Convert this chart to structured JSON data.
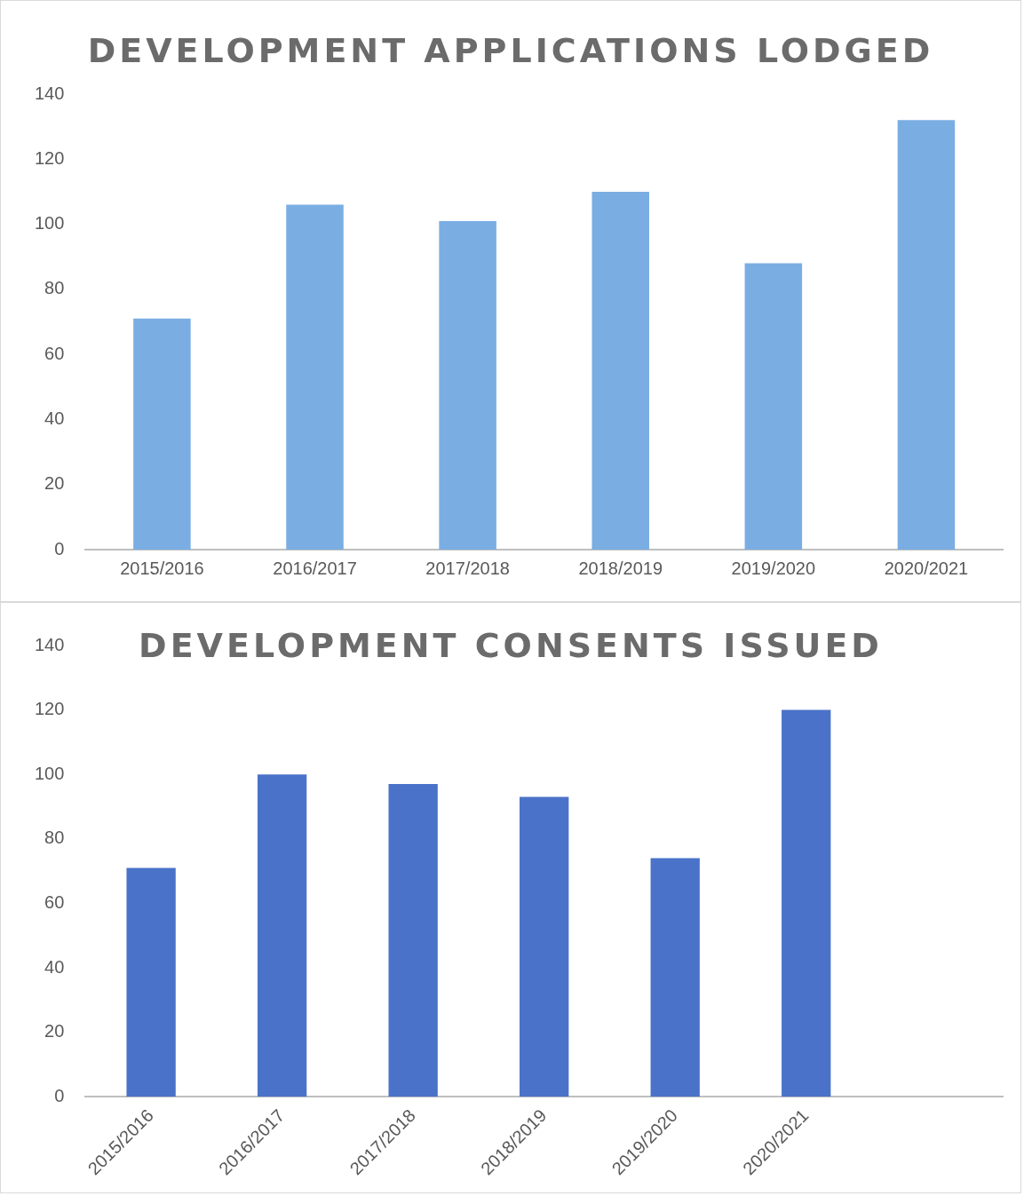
{
  "chart_data": [
    {
      "type": "bar",
      "title": "DEVELOPMENT APPLICATIONS LODGED",
      "categories": [
        "2015/2016",
        "2016/2017",
        "2017/2018",
        "2018/2019",
        "2019/2020",
        "2020/2021"
      ],
      "values": [
        71,
        106,
        101,
        110,
        88,
        132
      ],
      "color": "#7aaee3",
      "ylim": [
        0,
        140
      ],
      "yticks": [
        0,
        20,
        40,
        60,
        80,
        100,
        120,
        140
      ],
      "grid": false
    },
    {
      "type": "bar",
      "title": "DEVELOPMENT CONSENTS ISSUED",
      "categories": [
        "2015/2016",
        "2016/2017",
        "2017/2018",
        "2018/2019",
        "2019/2020",
        "2020/2021",
        null
      ],
      "values": [
        71,
        100,
        97,
        93,
        74,
        120,
        null
      ],
      "color": "#4a72c8",
      "ylim": [
        0,
        140
      ],
      "yticks": [
        0,
        20,
        40,
        60,
        80,
        100,
        120,
        140
      ],
      "grid": false
    }
  ]
}
